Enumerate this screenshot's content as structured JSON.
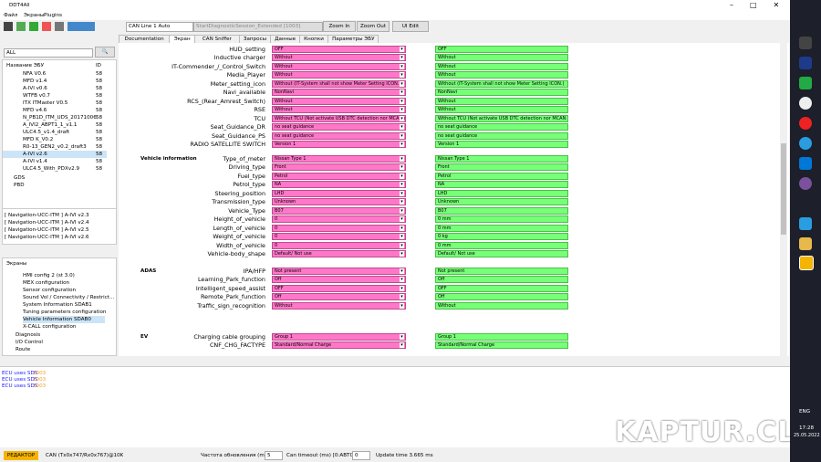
{
  "window": {
    "title": "DDT4All"
  },
  "menu": [
    "Файл",
    "Экраны",
    "Plugins"
  ],
  "toolbar": {
    "can_line": "CAN Line 1 Auto",
    "session": "StartDiagnosticSession_Extended [1003]",
    "buttons": [
      "Zoom In",
      "Zoom Out",
      "UI Edit"
    ]
  },
  "ecu_panel": {
    "filter": "ALL",
    "header": [
      "Название ЭБУ",
      "ID"
    ],
    "ecus": [
      [
        "NFA V0.6",
        "58"
      ],
      [
        "MFD v1.4",
        "58"
      ],
      [
        "A-IVI v0.6",
        "58"
      ],
      [
        "WTFB v0.7",
        "58"
      ],
      [
        "ITX ITMaster V0.5",
        "58"
      ],
      [
        "MFD v4.6",
        "58"
      ],
      [
        "N_PB1D_ITM_UDS_20171006",
        "58"
      ],
      [
        "A_IVI2_ABPT1_1_v1.1",
        "58"
      ],
      [
        "ULC4.5_v1.4_draft",
        "58"
      ],
      [
        "MFD K_V0.2",
        "58"
      ],
      [
        "R0-13_GEN2_v0.2_draft3",
        "58"
      ],
      [
        "A-IVI v2.6",
        "58"
      ],
      [
        "A-IVI v1.4",
        "58"
      ],
      [
        "ULC4.5_With_PDXv2.9",
        "58"
      ]
    ],
    "groups": [
      "GDS",
      "PBD"
    ]
  },
  "loaded_ecus": [
    "[ Navigation-UCC-ITM ] A-IVI v2.3",
    "[ Navigation-UCC-ITM ] A-IVI v2.4",
    "[ Navigation-UCC-ITM ] A-IVI v2.5",
    "[ Navigation-UCC-ITM ] A-IVI v2.6"
  ],
  "screens": {
    "title": "Экраны",
    "items": [
      "HMI config 2 (st 3.0)",
      "MEX configuration",
      "Sensor configuration",
      "Sound Vol / Connectivity / Restrict...",
      "System Information SDAB1",
      "Tuning parameters configuration",
      "Vehicle Information SDAB0",
      "X-CALL configuration"
    ],
    "folders": [
      "Diagnosis",
      "I/O Control",
      "Route"
    ]
  },
  "tabs": [
    "Documentation",
    "Экран",
    "CAN Sniffer",
    "Запросы",
    "Данные",
    "Кнопки",
    "Параметры ЭБУ"
  ],
  "sections": [
    {
      "rows": [
        [
          "HUD_setting",
          "OFF",
          "OFF"
        ],
        [
          "Inductive charger",
          "Without",
          "Without"
        ],
        [
          "IT-Commender_/_Control_Switch",
          "Without",
          "Without"
        ],
        [
          "Media_Player",
          "Without",
          "Without"
        ],
        [
          "Meter_setting_icon",
          "Without (IT-System shall not show Meter Setting ICON.)",
          "Without (IT-System shall not show Meter Setting ICON.)"
        ],
        [
          "Navi_available",
          "NonNavi",
          "NonNavi"
        ],
        [
          "RCS_(Rear_Amrest_Switch)",
          "Without",
          "Without"
        ],
        [
          "RSE",
          "Without",
          "Without"
        ],
        [
          "TCU",
          "Without TCU (Not activate USB DTC detection nor MCAN co",
          "Without TCU (Not activate USB DTC detection nor MCAN communicatio"
        ],
        [
          "Seat_Guidance_DR",
          "no seat guidance",
          "no seat guidance"
        ],
        [
          "Seat_Guidance_PS",
          "no seat guidance",
          "no seat guidance"
        ],
        [
          "RADIO SATELLITE SWITCH",
          "Version 1",
          "Version 1"
        ]
      ]
    },
    {
      "title": "Vehicle information",
      "rows": [
        [
          "Type_of_meter",
          "Nissan Type 1",
          "Nissan Type 1"
        ],
        [
          "Driving_type",
          "Front",
          "Front"
        ],
        [
          "Fuel_type",
          "Petrol",
          "Petrol"
        ],
        [
          "Petrol_type",
          "NA",
          "NA"
        ],
        [
          "Steering_position",
          "LHD",
          "LHD"
        ],
        [
          "Transmission_type",
          "Unknown",
          "Unknown"
        ],
        [
          "Vehicle_Type",
          "B07",
          "B07"
        ],
        [
          "Height_of_vehicle",
          "0",
          "0 mm"
        ],
        [
          "Length_of_vehicle",
          "0",
          "0 mm"
        ],
        [
          "Weight_of_vehicle",
          "0",
          "0 kg"
        ],
        [
          "Width_of_vehicle",
          "0",
          "0 mm"
        ],
        [
          "Vehicle-body_shape",
          "Default/ Not use",
          "Default/ Not use"
        ]
      ]
    },
    {
      "title": "ADAS",
      "rows": [
        [
          "IPA/HFP",
          "Not present",
          "Not present"
        ],
        [
          "Learning_Park_function",
          "Off",
          "Off"
        ],
        [
          "Intelligent_speed_assist",
          "OFF",
          "OFF"
        ],
        [
          "Remote_Park_function",
          "Off",
          "Off"
        ],
        [
          "Traffic_sign_recognition",
          "Without",
          "Without"
        ]
      ]
    },
    {
      "title": "EV",
      "rows": [
        [
          "Charging cable grouping",
          "Group 1",
          "Group 1"
        ],
        [
          "CNF_CHG_FACTYPE",
          "Standard/Normal Charge",
          "Standard/Normal Charge"
        ]
      ]
    }
  ],
  "log": [
    [
      "ECU uses SDS",
      "1003"
    ],
    [
      "ECU uses SDS",
      "1003"
    ],
    [
      "ECU uses SDS",
      "1003"
    ]
  ],
  "status": {
    "mode": "РЕДАКТОР",
    "can": "CAN (Tx0x747/Rx0x767)@10K",
    "refresh_label": "Частота обновления (ms):",
    "refresh": "5",
    "timeout_label": "Can timeout (ms) [0:АВТО] :",
    "timeout": "0",
    "update": "Update time 3.665 ms"
  },
  "taskbar": {
    "lang": "ENG",
    "time": "17:28",
    "date": "25.05.2022"
  },
  "watermark": "KAPTUR.CLUB"
}
